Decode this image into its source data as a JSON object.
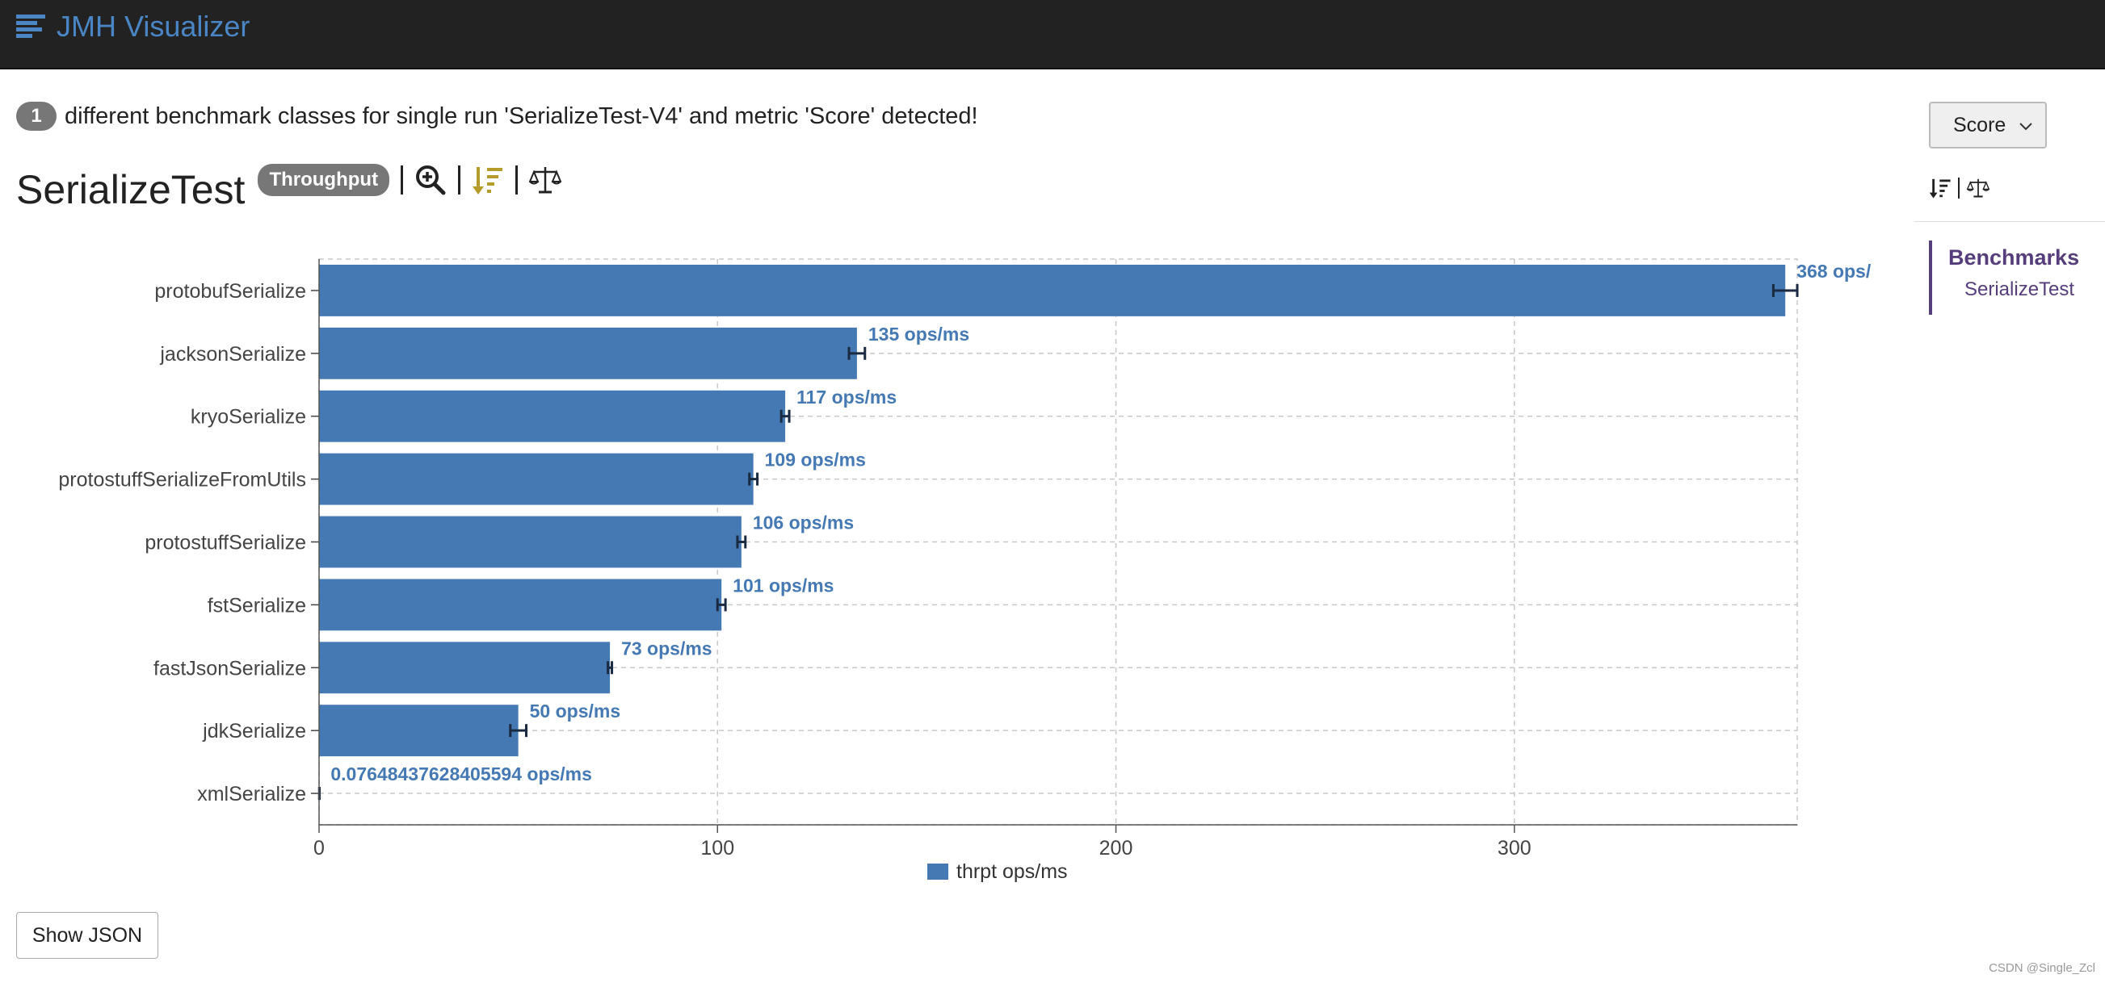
{
  "navbar": {
    "brand_label": "JMH Visualizer",
    "brand_color": "#4a86c6"
  },
  "notice": {
    "count": "1",
    "message": "different benchmark classes for single run 'SerializeTest-V4' and metric 'Score' detected!"
  },
  "header": {
    "title": "SerializeTest",
    "mode_badge": "Throughput",
    "tools": [
      "zoom-in-icon",
      "sort-descending-icon",
      "balance-scale-icon"
    ],
    "sort_icon_color": "#b59b2a"
  },
  "chart_data": {
    "type": "bar",
    "orientation": "horizontal",
    "categories": [
      "protobufSerialize",
      "jacksonSerialize",
      "kryoSerialize",
      "protostuffSerializeFromUtils",
      "protostuffSerialize",
      "fstSerialize",
      "fastJsonSerialize",
      "jdkSerialize",
      "xmlSerialize"
    ],
    "series": [
      {
        "name": "thrpt ops/ms",
        "color": "#4579b4",
        "values": [
          368,
          135,
          117,
          109,
          106,
          101,
          73,
          50,
          0.07648437628405594
        ],
        "errors": [
          3,
          2,
          1,
          1,
          1,
          1,
          0.5,
          2,
          0.01
        ]
      }
    ],
    "data_labels": [
      "368 ops/",
      "135 ops/ms",
      "117 ops/ms",
      "109 ops/ms",
      "106 ops/ms",
      "101 ops/ms",
      "73 ops/ms",
      "50 ops/ms",
      "0.07648437628405594 ops/ms"
    ],
    "x_ticks": [
      "0",
      "100",
      "200",
      "300"
    ],
    "x_tick_values": [
      0,
      100,
      200,
      300
    ],
    "xlim": [
      0,
      371
    ],
    "grid": true,
    "legend": "bottom-center"
  },
  "footer": {
    "show_json_label": "Show JSON",
    "watermark": "CSDN @Single_Zcl"
  },
  "sidebar": {
    "metric_selected": "Score",
    "toc_heading": "Benchmarks",
    "toc_items": [
      "SerializeTest"
    ],
    "accent": "#563d7c"
  }
}
